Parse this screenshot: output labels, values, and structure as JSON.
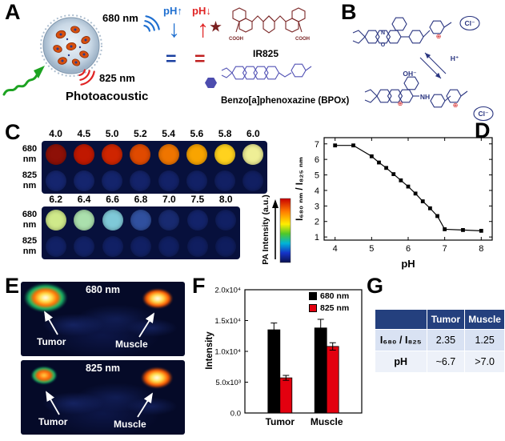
{
  "panels": {
    "A": {
      "label": "A",
      "wavelength_top": "680 nm",
      "wavelength_bottom": "825 nm",
      "photoacoustic": "Photoacoustic",
      "ph_up": "pH↑",
      "ph_down": "pH↓",
      "arrow_down": "↓",
      "arrow_up": "↑",
      "equals": "=",
      "ir825_name": "IR825",
      "bpox_name": "Benzo[a]phenoxazine (BPOx)",
      "cooh": "COOH"
    },
    "B": {
      "label": "B",
      "cl_top": "Cl⁻",
      "h_plus": "H⁺",
      "oh_minus": "OH⁻",
      "nh": "NH",
      "cl_bottom": "Cl⁻",
      "n": "N",
      "o": "O",
      "plus": "⊕"
    },
    "C": {
      "label": "C"
    },
    "D": {
      "label": "D"
    },
    "E": {
      "label": "E",
      "images": [
        {
          "label": "680 nm"
        },
        {
          "label": "825 nm"
        }
      ],
      "tumor": "Tumor",
      "muscle": "Muscle"
    },
    "F": {
      "label": "F"
    },
    "G": {
      "label": "G"
    }
  },
  "chart_data": [
    {
      "id": "panelC_phantoms",
      "type": "heatmap",
      "title": "PA phantom wells vs pH at 680 nm and 825 nm",
      "colorbar_label": "PA Intensity (a.u.)",
      "groups": [
        {
          "ph": [
            4.0,
            4.5,
            5.0,
            5.2,
            5.4,
            5.6,
            5.8,
            6.0
          ],
          "rows": [
            {
              "name": "680 nm",
              "colors": [
                "#8e1007",
                "#c01800",
                "#cf2500",
                "#e04a00",
                "#ef7500",
                "#f9a400",
                "#ffd21e",
                "#efef96"
              ]
            },
            {
              "name": "825 nm",
              "colors": [
                "#15256e",
                "#15256e",
                "#14246c",
                "#14236a",
                "#132268",
                "#122166",
                "#122064",
                "#111f62"
              ]
            }
          ]
        },
        {
          "ph": [
            6.2,
            6.4,
            6.6,
            6.8,
            7.0,
            7.5,
            8.0
          ],
          "rows": [
            {
              "name": "680 nm",
              "colors": [
                "#cfe98a",
                "#abe0ad",
                "#7fc9d8",
                "#30509f",
                "#182a70",
                "#13236a",
                "#112064"
              ]
            },
            {
              "name": "825 nm",
              "colors": [
                "#122166",
                "#122166",
                "#112065",
                "#112064",
                "#101f62",
                "#101e60",
                "#0f1d5e"
              ]
            }
          ]
        }
      ]
    },
    {
      "id": "panelD_ratio_vs_pH",
      "type": "line",
      "x": [
        4.0,
        4.5,
        5.0,
        5.2,
        5.4,
        5.6,
        5.8,
        6.0,
        6.2,
        6.4,
        6.6,
        6.8,
        7.0,
        7.5,
        8.0
      ],
      "y": [
        6.9,
        6.9,
        6.2,
        5.8,
        5.45,
        5.05,
        4.65,
        4.25,
        3.8,
        3.3,
        2.85,
        2.35,
        1.5,
        1.45,
        1.4
      ],
      "xlabel": "pH",
      "ylabel": "I₆₈₀ ₙₘ / I₈₂₅ ₙₘ",
      "xlim": [
        3.7,
        8.3
      ],
      "ylim": [
        0.8,
        7.4
      ],
      "xticks": [
        4,
        5,
        6,
        7,
        8
      ],
      "yticks": [
        1,
        2,
        3,
        4,
        5,
        6,
        7
      ],
      "marker": "square",
      "color": "#000000"
    },
    {
      "id": "panelF_intensity",
      "type": "bar",
      "categories": [
        "Tumor",
        "Muscle"
      ],
      "series": [
        {
          "name": "680 nm",
          "color": "#000000",
          "values": [
            13500,
            13800
          ],
          "errors": [
            1100,
            1400
          ]
        },
        {
          "name": "825 nm",
          "color": "#e3000f",
          "values": [
            5700,
            10800
          ],
          "errors": [
            400,
            600
          ]
        }
      ],
      "ylabel": "Intensity",
      "ylim": [
        0,
        20000
      ],
      "yticks": [
        {
          "v": 0,
          "label": "0.0"
        },
        {
          "v": 5000,
          "label": "5.0x10³"
        },
        {
          "v": 10000,
          "label": "1.0x10⁴"
        },
        {
          "v": 15000,
          "label": "1.5x10⁴"
        },
        {
          "v": 20000,
          "label": "2.0x10⁴"
        }
      ]
    },
    {
      "id": "panelG_table",
      "type": "table",
      "headers": [
        "",
        "Tumor",
        "Muscle"
      ],
      "rows": [
        [
          "I₆₈₀ / I₈₂₅",
          "2.35",
          "1.25"
        ],
        [
          "pH",
          "~6.7",
          ">7.0"
        ]
      ]
    }
  ]
}
